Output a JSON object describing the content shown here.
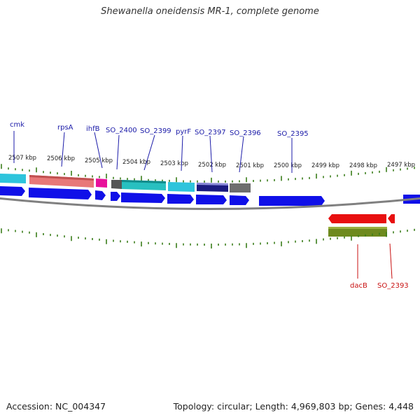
{
  "title": "Shewanella oneidensis MR-1, complete genome",
  "footer": {
    "accession": "Accession: NC_004347",
    "summary": "Topology: circular; Length: 4,969,803 bp; Genes: 4,448"
  },
  "colors": {
    "forward_gene": "#1010e8",
    "reverse_gene": "#e81010",
    "tick": "#3a7d1a",
    "forward_label": "#1a1aa8",
    "reverse_label": "#c81010",
    "backbone": "#808080"
  },
  "scale_labels": [
    "2507 kbp",
    "2506 kbp",
    "2505 kbp",
    "2504 kbp",
    "2503 kbp",
    "2502 kbp",
    "2501 kbp",
    "2500 kbp",
    "2499 kbp",
    "2498 kbp",
    "2497 kbp"
  ],
  "forward_gene_labels": [
    "cmk",
    "rpsA",
    "ihfB",
    "SO_2400",
    "SO_2399",
    "pyrF",
    "SO_2397",
    "SO_2396",
    "SO_2395"
  ],
  "reverse_gene_labels": [
    "dacB",
    "SO_2393"
  ]
}
